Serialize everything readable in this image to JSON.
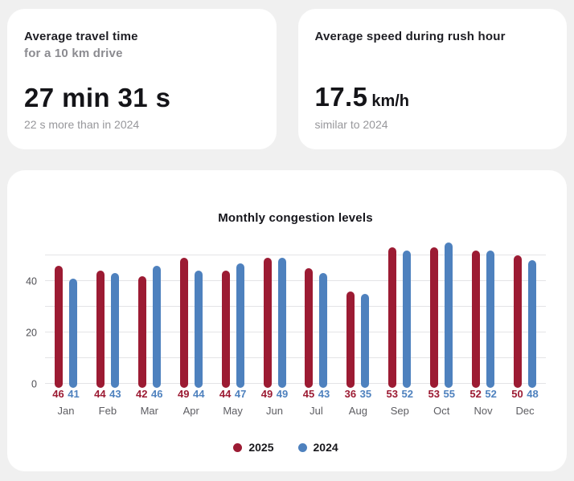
{
  "cards": [
    {
      "title": "Average travel time",
      "subtitle": "for a 10 km drive",
      "value": "27 min 31 s",
      "note": "22 s more than in 2024"
    },
    {
      "title": "Average speed during rush hour",
      "value": "17.5",
      "unit": "km/h",
      "note": "similar to 2024"
    }
  ],
  "chart_data": {
    "type": "bar",
    "title": "Monthly congestion levels",
    "categories": [
      "Jan",
      "Feb",
      "Mar",
      "Apr",
      "May",
      "Jun",
      "Jul",
      "Aug",
      "Sep",
      "Oct",
      "Nov",
      "Dec"
    ],
    "series": [
      {
        "name": "2025",
        "color": "#9c1b33",
        "values": [
          46,
          44,
          42,
          49,
          44,
          49,
          45,
          36,
          53,
          53,
          52,
          50
        ]
      },
      {
        "name": "2024",
        "color": "#4e81be",
        "values": [
          41,
          43,
          46,
          44,
          47,
          49,
          43,
          35,
          52,
          55,
          52,
          48
        ]
      }
    ],
    "y_ticks": [
      0,
      20,
      40
    ],
    "gridline_step": 10,
    "ylim": [
      0,
      56
    ],
    "grid": true,
    "legend_position": "bottom",
    "value_labels": true,
    "xlabel": "",
    "ylabel": ""
  },
  "colors": {
    "page_background": "#f0f0f0",
    "card_background": "#ffffff",
    "series_2025": "#9c1b33",
    "series_2024": "#4e81be",
    "muted_text": "#97979b",
    "gridline": "#e4e4e6"
  }
}
